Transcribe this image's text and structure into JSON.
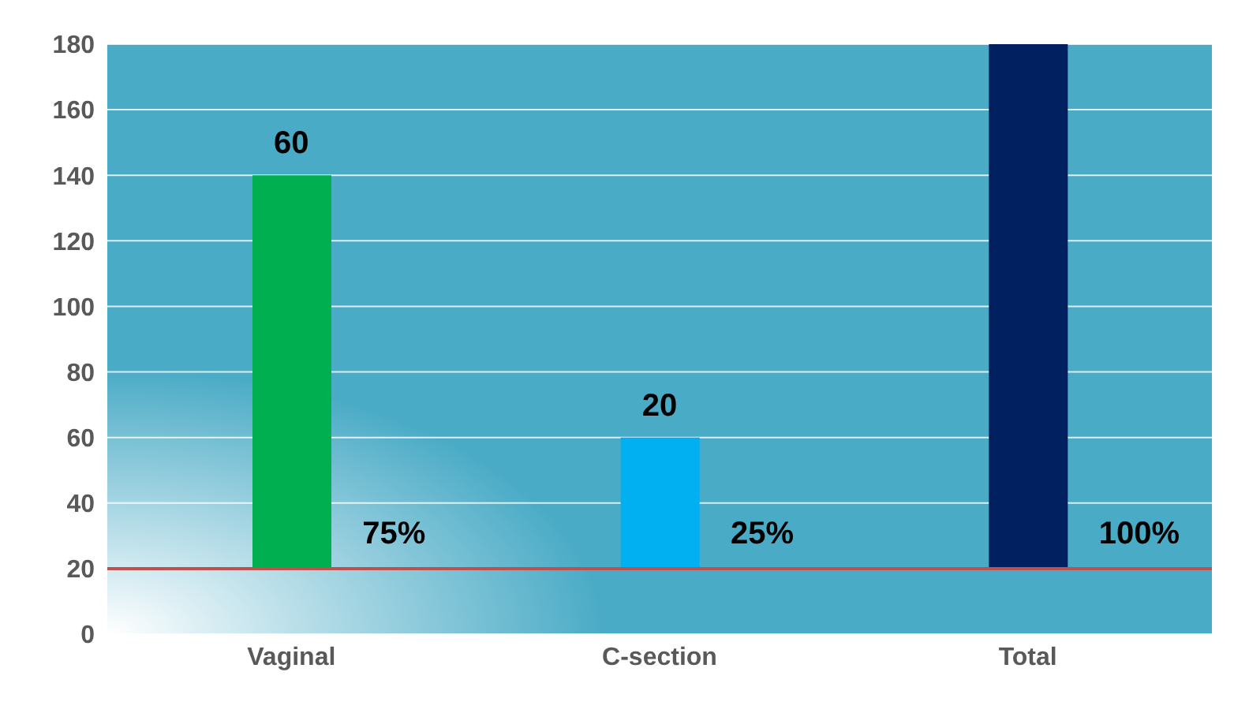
{
  "chart_data": {
    "type": "bar",
    "categories": [
      "Vaginal",
      "C-section",
      "Total"
    ],
    "base": [
      20,
      20,
      20
    ],
    "values": [
      120,
      40,
      160
    ],
    "colors": [
      "#00b050",
      "#00b0f0",
      "#002060"
    ],
    "annotations": [
      "60",
      "20",
      "75%",
      "25%",
      "100%"
    ],
    "ref_lines": [
      {
        "axis": "y",
        "value": 20,
        "color": "#c0504d"
      }
    ],
    "ylim": [
      0,
      180
    ],
    "yticks": [
      0,
      20,
      40,
      60,
      80,
      100,
      120,
      140,
      160,
      180
    ],
    "grid": "y"
  }
}
